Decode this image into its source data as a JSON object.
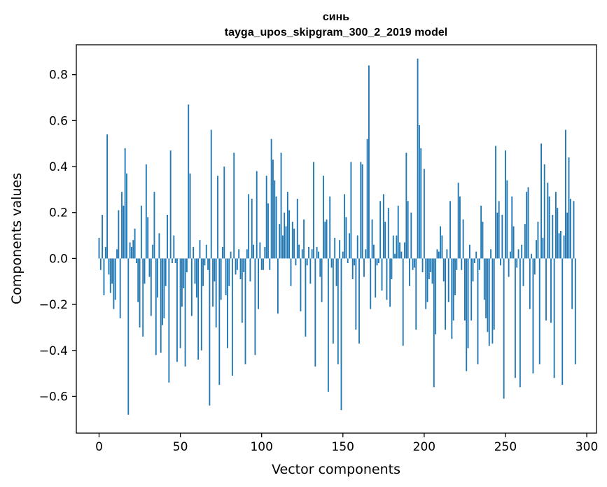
{
  "chart_data": {
    "type": "bar",
    "title": "синь",
    "subtitle": "tayga_upos_skipgram_300_2_2019 model",
    "xlabel": "Vector components",
    "ylabel": "Components values",
    "xlim": [
      -14,
      306
    ],
    "ylim": [
      -0.76,
      0.93
    ],
    "xticks": [
      0,
      50,
      100,
      150,
      200,
      250,
      300
    ],
    "xtick_labels": [
      "0",
      "50",
      "100",
      "150",
      "200",
      "250",
      "300"
    ],
    "yticks": [
      -0.6,
      -0.4,
      -0.2,
      0.0,
      0.2,
      0.4,
      0.6,
      0.8
    ],
    "ytick_labels": [
      "−0.6",
      "−0.4",
      "−0.2",
      "0.0",
      "0.2",
      "0.4",
      "0.6",
      "0.8"
    ],
    "bar_color": "#1f77b4",
    "values": [
      0.09,
      -0.05,
      0.19,
      -0.16,
      0.05,
      0.54,
      -0.07,
      -0.15,
      -0.11,
      -0.22,
      -0.18,
      0.04,
      0.21,
      -0.26,
      0.29,
      0.23,
      0.48,
      0.37,
      -0.68,
      0.07,
      0.05,
      0.08,
      0.13,
      -0.02,
      -0.19,
      -0.3,
      0.23,
      -0.34,
      -0.11,
      0.41,
      0.18,
      -0.08,
      -0.25,
      0.06,
      0.29,
      -0.42,
      -0.17,
      0.11,
      -0.41,
      -0.29,
      -0.26,
      -0.12,
      0.19,
      -0.54,
      0.47,
      -0.02,
      0.1,
      -0.02,
      -0.45,
      0.0,
      -0.39,
      -0.21,
      -0.13,
      -0.47,
      -0.06,
      0.67,
      0.37,
      -0.25,
      0.05,
      -0.11,
      -0.17,
      -0.44,
      0.08,
      -0.4,
      -0.12,
      -0.03,
      0.06,
      -0.05,
      -0.64,
      0.56,
      -0.21,
      -0.1,
      -0.3,
      0.36,
      -0.55,
      -0.18,
      0.05,
      0.4,
      -0.16,
      -0.39,
      -0.12,
      0.03,
      -0.51,
      0.46,
      -0.07,
      -0.05,
      0.04,
      -0.09,
      -0.28,
      -0.06,
      -0.46,
      0.04,
      0.28,
      -0.1,
      0.26,
      0.06,
      -0.42,
      0.38,
      -0.22,
      0.07,
      -0.05,
      -0.05,
      0.05,
      0.36,
      0.24,
      -0.05,
      0.52,
      0.43,
      0.34,
      0.27,
      -0.24,
      0.15,
      0.46,
      0.1,
      0.2,
      0.14,
      0.29,
      0.21,
      -0.12,
      0.16,
      0.13,
      -0.03,
      0.26,
      0.06,
      -0.23,
      0.04,
      0.17,
      -0.34,
      -0.03,
      0.05,
      -0.11,
      0.04,
      0.42,
      -0.47,
      0.05,
      0.03,
      -0.08,
      -0.19,
      0.36,
      0.16,
      0.17,
      -0.58,
      0.27,
      -0.04,
      -0.37,
      0.09,
      -0.12,
      -0.46,
      0.08,
      -0.66,
      0.03,
      0.28,
      0.18,
      -0.02,
      0.11,
      0.42,
      -0.09,
      -0.03,
      -0.31,
      0.1,
      -0.37,
      0.42,
      0.41,
      -0.08,
      0.04,
      0.52,
      0.84,
      -0.22,
      0.17,
      0.06,
      -0.17,
      -0.03,
      -0.02,
      0.25,
      -0.14,
      0.28,
      0.16,
      -0.18,
      0.22,
      -0.21,
      -0.09,
      0.1,
      0.02,
      0.1,
      0.23,
      0.07,
      0.03,
      -0.38,
      0.07,
      0.46,
      0.25,
      -0.12,
      0.2,
      -0.05,
      -0.04,
      -0.31,
      0.87,
      0.58,
      0.48,
      -0.06,
      0.39,
      -0.22,
      -0.19,
      -0.09,
      -0.06,
      -0.11,
      -0.56,
      -0.33,
      0.04,
      0.03,
      0.14,
      0.1,
      -0.1,
      -0.31,
      0.04,
      -0.19,
      0.25,
      -0.35,
      -0.27,
      -0.16,
      -0.05,
      0.33,
      0.27,
      -0.05,
      0.17,
      -0.27,
      -0.49,
      -0.39,
      0.06,
      -0.27,
      -0.1,
      -0.02,
      0.03,
      -0.46,
      -0.05,
      0.23,
      0.16,
      -0.18,
      -0.26,
      -0.32,
      -0.38,
      0.04,
      -0.37,
      -0.31,
      0.49,
      0.2,
      0.25,
      -0.03,
      0.19,
      -0.61,
      0.47,
      0.34,
      -0.08,
      0.03,
      0.27,
      0.14,
      -0.52,
      -0.04,
      0.04,
      -0.56,
      0.06,
      -0.12,
      0.15,
      0.29,
      0.31,
      -0.22,
      0.02,
      -0.5,
      -0.07,
      0.08,
      0.16,
      -0.46,
      0.5,
      0.09,
      0.41,
      -0.27,
      0.33,
      0.27,
      -0.28,
      0.19,
      -0.52,
      0.29,
      0.22,
      0.11,
      0.12,
      -0.55,
      0.1,
      0.56,
      0.2,
      0.44,
      0.26,
      -0.22,
      0.25,
      -0.46
    ]
  }
}
